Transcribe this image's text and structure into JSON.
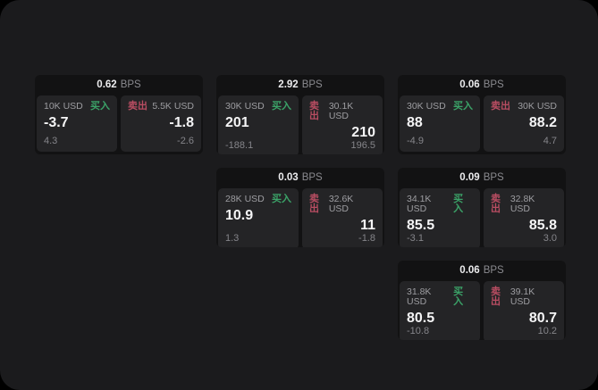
{
  "labels": {
    "bps_unit": "BPS",
    "buy": "买入",
    "sell": "卖出"
  },
  "colors": {
    "window_bg": "#1b1b1d",
    "card_bg": "#121213",
    "panel_bg": "#242426",
    "buy": "#3ba368",
    "sell": "#b94d62"
  },
  "cards": [
    {
      "bps": "0.62",
      "buy": {
        "size": "10K USD",
        "value": "-3.7",
        "delta": "4.3"
      },
      "sell": {
        "size": "5.5K USD",
        "value": "-1.8",
        "delta": "-2.6"
      }
    },
    {
      "bps": "2.92",
      "buy": {
        "size": "30K USD",
        "value": "201",
        "delta": "-188.1"
      },
      "sell": {
        "size": "30.1K USD",
        "value": "210",
        "delta": "196.5"
      }
    },
    {
      "bps": "0.06",
      "buy": {
        "size": "30K USD",
        "value": "88",
        "delta": "-4.9"
      },
      "sell": {
        "size": "30K USD",
        "value": "88.2",
        "delta": "4.7"
      }
    },
    {
      "bps": "0.03",
      "buy": {
        "size": "28K USD",
        "value": "10.9",
        "delta": "1.3"
      },
      "sell": {
        "size": "32.6K USD",
        "value": "11",
        "delta": "-1.8"
      }
    },
    {
      "bps": "0.09",
      "buy": {
        "size": "34.1K USD",
        "value": "85.5",
        "delta": "-3.1"
      },
      "sell": {
        "size": "32.8K USD",
        "value": "85.8",
        "delta": "3.0"
      }
    },
    {
      "bps": "0.06",
      "buy": {
        "size": "31.8K USD",
        "value": "80.5",
        "delta": "-10.8"
      },
      "sell": {
        "size": "39.1K USD",
        "value": "80.7",
        "delta": "10.2"
      }
    }
  ]
}
